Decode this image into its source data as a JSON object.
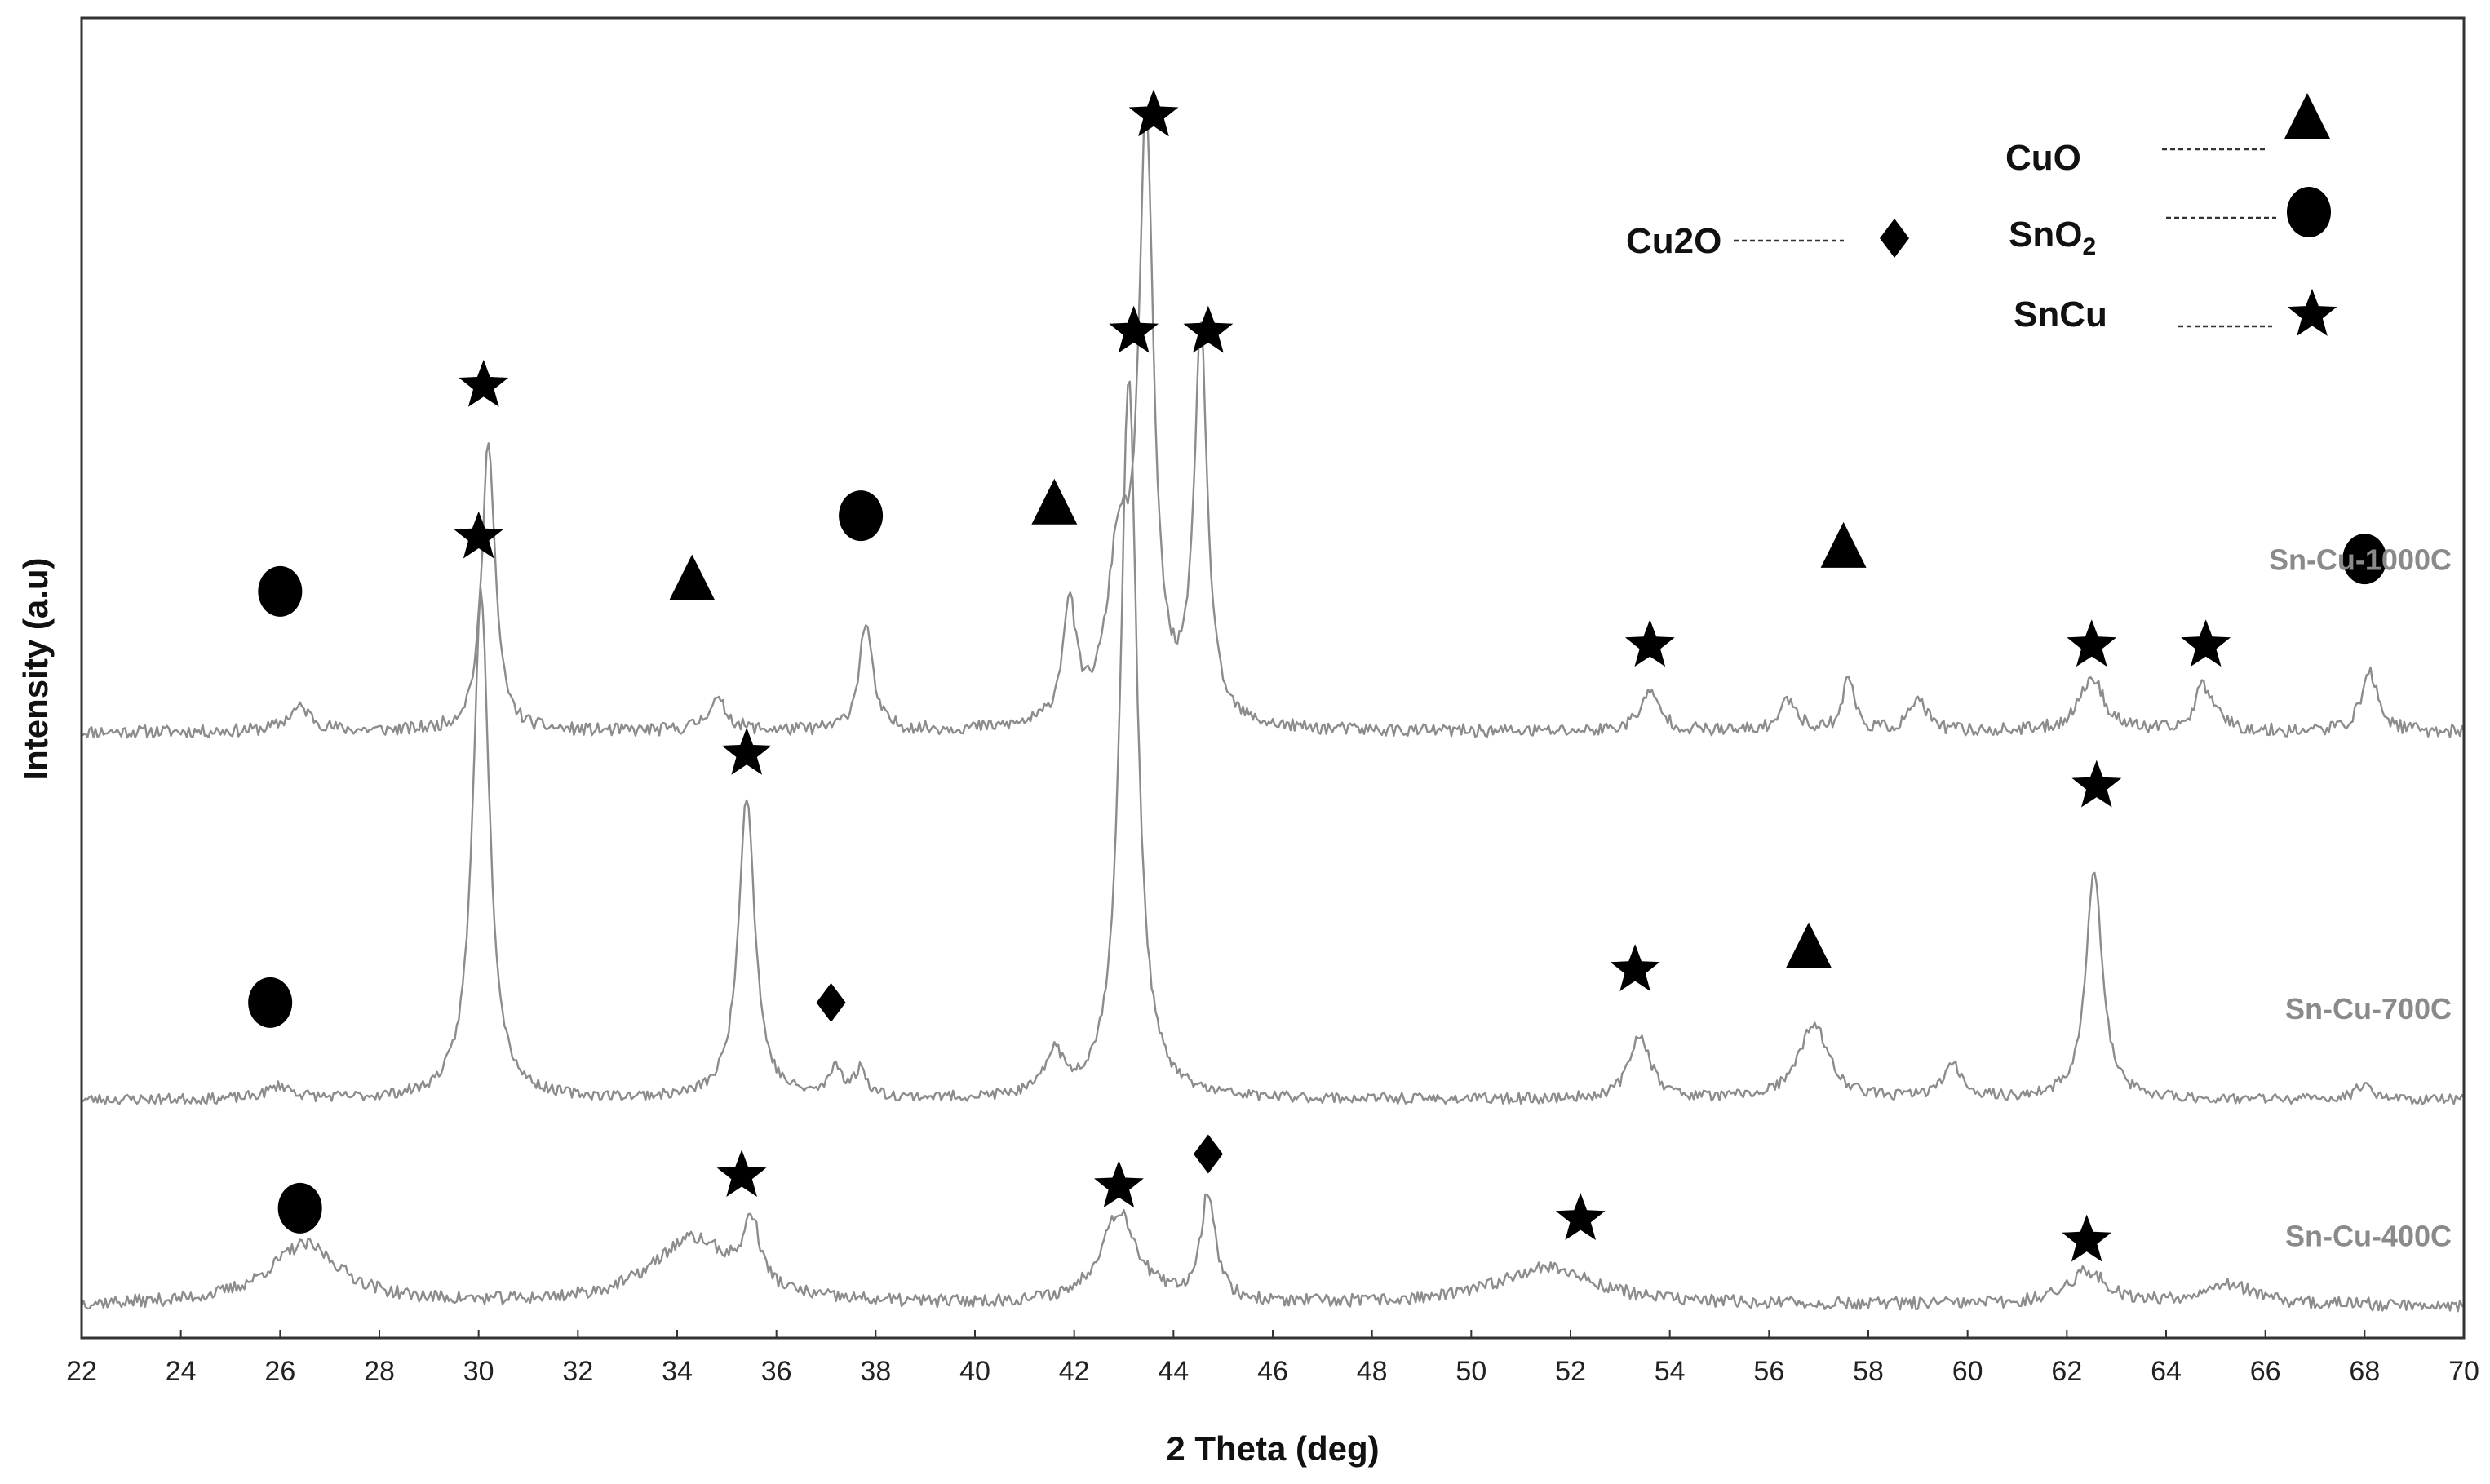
{
  "chart_data": {
    "type": "line",
    "xlabel": "2 Theta (deg)",
    "ylabel": "Intensity (a.u)",
    "xlim": [
      22,
      70
    ],
    "xticks": [
      "22",
      "24",
      "26",
      "28",
      "30",
      "32",
      "34",
      "36",
      "38",
      "40",
      "42",
      "44",
      "46",
      "48",
      "50",
      "52",
      "54",
      "56",
      "58",
      "60",
      "62",
      "64",
      "66",
      "68",
      "70"
    ],
    "grid": false,
    "legend_position": "top-right",
    "legend": [
      {
        "name": "CuO",
        "symbol": "triangle"
      },
      {
        "name": "SnO",
        "subscript": "2",
        "symbol": "circle"
      },
      {
        "name": "SnCu",
        "symbol": "star"
      },
      {
        "name": "Cu2O",
        "symbol": "diamond"
      }
    ],
    "series": [
      {
        "name": "Sn-Cu-1000C",
        "baseline": 5.6,
        "noise": 0.06,
        "seed": 11,
        "peaks": [
          {
            "x": 26.4,
            "h": 0.22,
            "w": 0.3
          },
          {
            "x": 30.2,
            "h": 2.7,
            "w": 0.16
          },
          {
            "x": 34.8,
            "h": 0.28,
            "w": 0.25
          },
          {
            "x": 37.8,
            "h": 1.0,
            "w": 0.16
          },
          {
            "x": 41.9,
            "h": 1.1,
            "w": 0.16
          },
          {
            "x": 42.9,
            "h": 1.5,
            "w": 0.28
          },
          {
            "x": 43.45,
            "h": 5.4,
            "w": 0.18
          },
          {
            "x": 44.55,
            "h": 3.6,
            "w": 0.16
          },
          {
            "x": 53.6,
            "h": 0.35,
            "w": 0.25
          },
          {
            "x": 56.4,
            "h": 0.3,
            "w": 0.2
          },
          {
            "x": 57.6,
            "h": 0.5,
            "w": 0.14
          },
          {
            "x": 59.0,
            "h": 0.3,
            "w": 0.2
          },
          {
            "x": 62.5,
            "h": 0.5,
            "w": 0.3
          },
          {
            "x": 64.7,
            "h": 0.38,
            "w": 0.15
          },
          {
            "x": 65.0,
            "h": 0.2,
            "w": 0.2
          },
          {
            "x": 68.1,
            "h": 0.55,
            "w": 0.2
          }
        ],
        "markers": [
          {
            "symbol": "circle",
            "x": 26.0,
            "y": 6.9
          },
          {
            "symbol": "star",
            "x": 30.1,
            "y": 8.8
          },
          {
            "symbol": "triangle",
            "x": 34.3,
            "y": 7.0
          },
          {
            "symbol": "circle",
            "x": 37.7,
            "y": 7.6
          },
          {
            "symbol": "triangle",
            "x": 41.6,
            "y": 7.7
          },
          {
            "symbol": "star",
            "x": 43.6,
            "y": 11.3
          },
          {
            "symbol": "star",
            "x": 44.7,
            "y": 9.3
          },
          {
            "symbol": "star",
            "x": 53.6,
            "y": 6.4
          },
          {
            "symbol": "triangle",
            "x": 57.5,
            "y": 7.3
          },
          {
            "symbol": "star",
            "x": 62.5,
            "y": 6.4
          },
          {
            "symbol": "star",
            "x": 64.8,
            "y": 6.4
          },
          {
            "symbol": "circle",
            "x": 68.0,
            "y": 7.2
          }
        ]
      },
      {
        "name": "Sn-Cu-700C",
        "baseline": 2.2,
        "noise": 0.05,
        "seed": 23,
        "peaks": [
          {
            "x": 26.0,
            "h": 0.12,
            "w": 0.3
          },
          {
            "x": 30.05,
            "h": 4.7,
            "w": 0.2
          },
          {
            "x": 35.4,
            "h": 2.8,
            "w": 0.2
          },
          {
            "x": 37.2,
            "h": 0.28,
            "w": 0.15
          },
          {
            "x": 37.7,
            "h": 0.25,
            "w": 0.15
          },
          {
            "x": 41.6,
            "h": 0.4,
            "w": 0.2
          },
          {
            "x": 43.1,
            "h": 6.7,
            "w": 0.2
          },
          {
            "x": 53.4,
            "h": 0.6,
            "w": 0.25
          },
          {
            "x": 56.9,
            "h": 0.7,
            "w": 0.35
          },
          {
            "x": 59.7,
            "h": 0.3,
            "w": 0.25
          },
          {
            "x": 62.55,
            "h": 2.1,
            "w": 0.2
          },
          {
            "x": 68.0,
            "h": 0.15,
            "w": 0.2
          }
        ],
        "markers": [
          {
            "symbol": "circle",
            "x": 25.8,
            "y": 3.1
          },
          {
            "symbol": "star",
            "x": 30.0,
            "y": 7.4
          },
          {
            "symbol": "star",
            "x": 35.4,
            "y": 5.4
          },
          {
            "symbol": "diamond",
            "x": 37.1,
            "y": 3.1
          },
          {
            "symbol": "star",
            "x": 43.2,
            "y": 9.3
          },
          {
            "symbol": "star",
            "x": 53.3,
            "y": 3.4
          },
          {
            "symbol": "triangle",
            "x": 56.8,
            "y": 3.6
          },
          {
            "symbol": "star",
            "x": 62.6,
            "y": 5.1
          }
        ]
      },
      {
        "name": "Sn-Cu-400C",
        "baseline": 0.3,
        "noise": 0.06,
        "seed": 37,
        "peaks": [
          {
            "x": 26.5,
            "h": 0.55,
            "w": 0.9
          },
          {
            "x": 34.3,
            "h": 0.6,
            "w": 1.0
          },
          {
            "x": 35.5,
            "h": 0.6,
            "w": 0.2
          },
          {
            "x": 42.9,
            "h": 0.85,
            "w": 0.45
          },
          {
            "x": 44.7,
            "h": 1.0,
            "w": 0.18
          },
          {
            "x": 51.5,
            "h": 0.35,
            "w": 1.2
          },
          {
            "x": 62.4,
            "h": 0.3,
            "w": 0.5
          },
          {
            "x": 65.2,
            "h": 0.2,
            "w": 0.6
          }
        ],
        "markers": [
          {
            "symbol": "circle",
            "x": 26.4,
            "y": 1.2
          },
          {
            "symbol": "star",
            "x": 35.3,
            "y": 1.5
          },
          {
            "symbol": "star",
            "x": 42.9,
            "y": 1.4
          },
          {
            "symbol": "diamond",
            "x": 44.7,
            "y": 1.7
          },
          {
            "symbol": "star",
            "x": 52.2,
            "y": 1.1
          },
          {
            "symbol": "star",
            "x": 62.4,
            "y": 0.9
          }
        ]
      }
    ]
  }
}
